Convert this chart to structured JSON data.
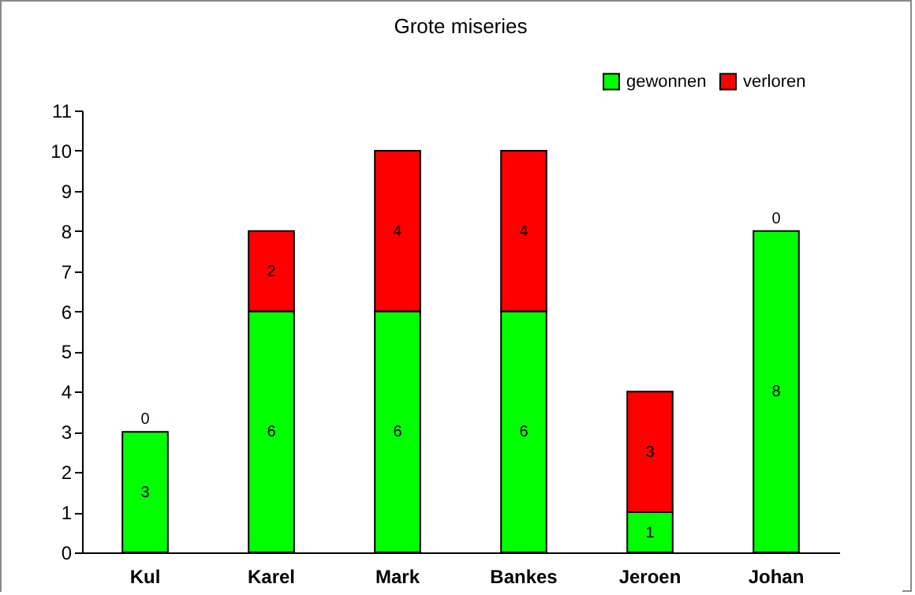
{
  "chart_data": {
    "type": "bar",
    "title": "Grote miseries",
    "categories": [
      "Kul",
      "Karel",
      "Mark",
      "Bankes",
      "Jeroen",
      "Johan"
    ],
    "series": [
      {
        "name": "gewonnen",
        "color": "#00ff00",
        "values": [
          3,
          6,
          6,
          6,
          1,
          8
        ]
      },
      {
        "name": "verloren",
        "color": "#ff0000",
        "values": [
          0,
          2,
          4,
          4,
          3,
          0
        ]
      }
    ],
    "stacked": true,
    "ylim": [
      0,
      11
    ],
    "yticks": [
      0,
      1,
      2,
      3,
      4,
      5,
      6,
      7,
      8,
      9,
      10,
      11
    ],
    "data_labels": true,
    "legend": "top right"
  }
}
